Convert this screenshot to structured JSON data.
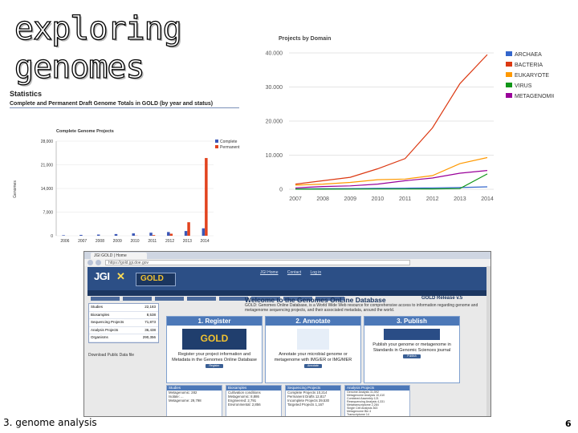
{
  "slide": {
    "title_line1": "exploring",
    "title_line2": "genomes",
    "footer_text": "3. genome analysis",
    "page_number": "6"
  },
  "stats": {
    "heading": "Statistics",
    "subheading": "Complete and Permanent Draft Genome Totals in GOLD (by year and status)"
  },
  "chart_data": [
    {
      "type": "bar",
      "title": "Complete Genome Projects",
      "ylabel": "Genomes",
      "categories": [
        "2006",
        "2007",
        "2008",
        "2009",
        "2010",
        "2011",
        "2012",
        "2013",
        "2014"
      ],
      "ylim": [
        0,
        28000
      ],
      "yticks": [
        "0",
        "7,000",
        "14,000",
        "21,000",
        "28,000"
      ],
      "series": [
        {
          "name": "Complete",
          "color": "#3b57b7",
          "values": [
            150,
            250,
            350,
            500,
            700,
            900,
            1100,
            1400,
            2200
          ]
        },
        {
          "name": "Permanent Draft",
          "color": "#e2431e",
          "values": [
            0,
            0,
            0,
            0,
            50,
            200,
            600,
            4000,
            23000
          ]
        }
      ],
      "legend_position": "right"
    },
    {
      "type": "line",
      "title": "Projects by Domain",
      "categories": [
        "2007",
        "2008",
        "2009",
        "2010",
        "2011",
        "2012",
        "2013",
        "2014"
      ],
      "ylim": [
        0,
        40000
      ],
      "yticks": [
        "0",
        "10.000",
        "20.000",
        "30.000",
        "40.000"
      ],
      "series": [
        {
          "name": "ARCHAEA",
          "color": "#3366cc",
          "values": [
            100,
            150,
            200,
            250,
            300,
            400,
            500,
            700
          ]
        },
        {
          "name": "BACTERIA",
          "color": "#dc3912",
          "values": [
            1500,
            2500,
            3500,
            6000,
            9000,
            18000,
            31000,
            39500
          ]
        },
        {
          "name": "EUKARYOTE",
          "color": "#ff9900",
          "values": [
            1200,
            1500,
            2000,
            2800,
            3000,
            4000,
            7500,
            9300
          ]
        },
        {
          "name": "VIRUS",
          "color": "#109618",
          "values": [
            20,
            30,
            40,
            60,
            80,
            100,
            200,
            4500
          ]
        },
        {
          "name": "METAGENOMIC",
          "color": "#990099",
          "values": [
            400,
            800,
            1000,
            1500,
            2500,
            3300,
            4700,
            5500
          ]
        }
      ],
      "grid": true,
      "legend_position": "right"
    }
  ],
  "browser": {
    "tab_title": "JGI GOLD | Home",
    "url": "https://gold.jgi.doe.gov",
    "header_links": [
      "JGI Home",
      "Contact",
      "Log in"
    ],
    "welcome_title": "Welcome to the Genomes OnLine Database",
    "release": "GOLD Release v.5",
    "welcome_body": "GOLD: Genomes Online Database, is a World Wide Web resource for comprehensive access to information regarding genome and metagenome sequencing projects, and their associated metadata, around the world.",
    "stats_rows": [
      {
        "k": "Studies",
        "v": "22,183"
      },
      {
        "k": "Biosamples",
        "v": "8,538"
      },
      {
        "k": "Sequencing Projects",
        "v": "71,873"
      },
      {
        "k": "Analysis Projects",
        "v": "36,438"
      },
      {
        "k": "Organisms",
        "v": "290,356"
      }
    ],
    "download_label": "Download Public Data file",
    "steps": [
      {
        "header": "1. Register",
        "text": "Register your project information and Metadata in the Genomes Online Database",
        "button": "Register"
      },
      {
        "header": "2. Annotate",
        "text": "Annotate your microbial genome or metagenome with IMG/ER or IMG/MER",
        "button": "Annotate"
      },
      {
        "header": "3. Publish",
        "text": "Publish your genome or metagenome in Standards in Genomic Sciences journal",
        "button": "Publish"
      }
    ],
    "lists": [
      {
        "header": "Studies",
        "lines": [
          "Metagenomic: 282",
          "Isolate: ...",
          "Metagenome: 29,798"
        ]
      },
      {
        "header": "Biosamples",
        "lines": [
          "Cultivation conditions",
          "Metagenomic: 8,886",
          "Engineered: 2,791",
          "Environmental: 2,856"
        ]
      },
      {
        "header": "Sequencing Projects",
        "lines": [
          "Complete Projects 10,214",
          "Permanent Drafts 12,817",
          "Incomplete Projects 39,530",
          "Targeted Projects 1,167"
        ]
      },
      {
        "header": "Analysis Projects",
        "lines": [
          "Genome Analysis 31,592",
          "Metagenome Analysis 10,410",
          "Combined Assembly 121",
          "Resequencing Analysis 4,331",
          "Metatranscriptome 2,284",
          "Single Cell Analysis 363",
          "Metagenome Bin 4",
          "Transcriptome 14"
        ]
      }
    ]
  }
}
